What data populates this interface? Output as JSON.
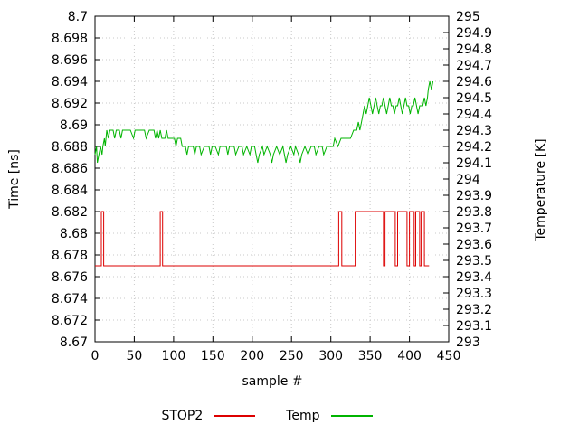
{
  "chart_data": {
    "type": "line",
    "title": "",
    "xlabel": "sample #",
    "ylabel_left": "Time [ns]",
    "ylabel_right": "Temperature [K]",
    "xlim": [
      0,
      450
    ],
    "ylim_left": [
      8.67,
      8.7
    ],
    "ylim_right": [
      293,
      295
    ],
    "grid": true,
    "legend_position": "bottom-center",
    "x_ticks": {
      "values": [
        0,
        50,
        100,
        150,
        200,
        250,
        300,
        350,
        400,
        450
      ],
      "labels": [
        "0",
        "50",
        "100",
        "150",
        "200",
        "250",
        "300",
        "350",
        "400",
        "450"
      ]
    },
    "left_ticks": {
      "values": [
        8.67,
        8.672,
        8.674,
        8.676,
        8.678,
        8.68,
        8.682,
        8.684,
        8.686,
        8.688,
        8.69,
        8.692,
        8.694,
        8.696,
        8.698,
        8.7
      ],
      "labels": [
        "8.67",
        "8.672",
        "8.674",
        "8.676",
        "8.678",
        "8.68",
        "8.682",
        "8.684",
        "8.686",
        "8.688",
        "8.69",
        "8.692",
        "8.694",
        "8.696",
        "8.698",
        "8.7"
      ]
    },
    "right_ticks": {
      "values": [
        293,
        293.1,
        293.2,
        293.3,
        293.4,
        293.5,
        293.6,
        293.7,
        293.8,
        293.9,
        294,
        294.1,
        294.2,
        294.3,
        294.4,
        294.5,
        294.6,
        294.7,
        294.8,
        294.9,
        295
      ],
      "labels": [
        "293",
        "293.1",
        "293.2",
        "293.3",
        "293.4",
        "293.5",
        "293.6",
        "293.7",
        "293.8",
        "293.9",
        "294",
        "294.1",
        "294.2",
        "294.3",
        "294.4",
        "294.5",
        "294.6",
        "294.7",
        "294.8",
        "294.9",
        "295"
      ]
    },
    "grid_color": "#c8c8c8",
    "border_color": "#000000",
    "series": [
      {
        "name": "STOP2",
        "axis": "left",
        "color": "#dd0000",
        "points": [
          [
            0,
            8.677
          ],
          [
            8,
            8.677
          ],
          [
            8,
            8.682
          ],
          [
            11,
            8.682
          ],
          [
            11,
            8.677
          ],
          [
            83,
            8.677
          ],
          [
            83,
            8.682
          ],
          [
            86,
            8.682
          ],
          [
            86,
            8.677
          ],
          [
            310,
            8.677
          ],
          [
            310,
            8.682
          ],
          [
            314,
            8.682
          ],
          [
            314,
            8.677
          ],
          [
            331,
            8.677
          ],
          [
            331,
            8.682
          ],
          [
            367,
            8.682
          ],
          [
            367,
            8.677
          ],
          [
            369,
            8.677
          ],
          [
            369,
            8.682
          ],
          [
            382,
            8.682
          ],
          [
            382,
            8.677
          ],
          [
            385,
            8.677
          ],
          [
            385,
            8.682
          ],
          [
            397,
            8.682
          ],
          [
            397,
            8.677
          ],
          [
            400,
            8.677
          ],
          [
            400,
            8.682
          ],
          [
            406,
            8.682
          ],
          [
            406,
            8.677
          ],
          [
            408,
            8.677
          ],
          [
            408,
            8.682
          ],
          [
            413,
            8.682
          ],
          [
            413,
            8.677
          ],
          [
            415,
            8.677
          ],
          [
            415,
            8.682
          ],
          [
            419,
            8.682
          ],
          [
            419,
            8.677
          ],
          [
            425,
            8.677
          ]
        ]
      },
      {
        "name": "Temp",
        "axis": "right",
        "color": "#00b400",
        "points": [
          [
            0,
            294.15
          ],
          [
            2,
            294.2
          ],
          [
            3,
            294.1
          ],
          [
            5,
            294.15
          ],
          [
            7,
            294.2
          ],
          [
            9,
            294.15
          ],
          [
            10,
            294.2
          ],
          [
            12,
            294.25
          ],
          [
            13,
            294.2
          ],
          [
            15,
            294.3
          ],
          [
            17,
            294.25
          ],
          [
            19,
            294.3
          ],
          [
            23,
            294.3
          ],
          [
            25,
            294.25
          ],
          [
            27,
            294.3
          ],
          [
            31,
            294.3
          ],
          [
            33,
            294.25
          ],
          [
            35,
            294.3
          ],
          [
            41,
            294.3
          ],
          [
            45,
            294.3
          ],
          [
            49,
            294.25
          ],
          [
            51,
            294.3
          ],
          [
            57,
            294.3
          ],
          [
            63,
            294.3
          ],
          [
            65,
            294.25
          ],
          [
            69,
            294.3
          ],
          [
            75,
            294.3
          ],
          [
            77,
            294.25
          ],
          [
            79,
            294.3
          ],
          [
            81,
            294.25
          ],
          [
            83,
            294.3
          ],
          [
            85,
            294.25
          ],
          [
            89,
            294.25
          ],
          [
            91,
            294.3
          ],
          [
            93,
            294.25
          ],
          [
            97,
            294.25
          ],
          [
            101,
            294.25
          ],
          [
            103,
            294.2
          ],
          [
            105,
            294.25
          ],
          [
            109,
            294.25
          ],
          [
            111,
            294.2
          ],
          [
            115,
            294.2
          ],
          [
            117,
            294.15
          ],
          [
            119,
            294.2
          ],
          [
            125,
            294.2
          ],
          [
            127,
            294.15
          ],
          [
            129,
            294.2
          ],
          [
            133,
            294.2
          ],
          [
            135,
            294.15
          ],
          [
            139,
            294.2
          ],
          [
            145,
            294.2
          ],
          [
            147,
            294.15
          ],
          [
            149,
            294.2
          ],
          [
            153,
            294.2
          ],
          [
            157,
            294.15
          ],
          [
            159,
            294.2
          ],
          [
            163,
            294.2
          ],
          [
            167,
            294.2
          ],
          [
            169,
            294.15
          ],
          [
            171,
            294.2
          ],
          [
            177,
            294.2
          ],
          [
            179,
            294.15
          ],
          [
            183,
            294.2
          ],
          [
            187,
            294.2
          ],
          [
            189,
            294.15
          ],
          [
            193,
            294.2
          ],
          [
            197,
            294.15
          ],
          [
            199,
            294.2
          ],
          [
            203,
            294.2
          ],
          [
            205,
            294.15
          ],
          [
            207,
            294.1
          ],
          [
            209,
            294.15
          ],
          [
            213,
            294.2
          ],
          [
            215,
            294.15
          ],
          [
            219,
            294.2
          ],
          [
            223,
            294.15
          ],
          [
            225,
            294.1
          ],
          [
            227,
            294.15
          ],
          [
            231,
            294.2
          ],
          [
            235,
            294.15
          ],
          [
            239,
            294.2
          ],
          [
            241,
            294.15
          ],
          [
            243,
            294.1
          ],
          [
            245,
            294.15
          ],
          [
            249,
            294.2
          ],
          [
            253,
            294.15
          ],
          [
            255,
            294.2
          ],
          [
            259,
            294.15
          ],
          [
            261,
            294.1
          ],
          [
            263,
            294.15
          ],
          [
            267,
            294.2
          ],
          [
            271,
            294.15
          ],
          [
            275,
            294.2
          ],
          [
            279,
            294.2
          ],
          [
            281,
            294.15
          ],
          [
            285,
            294.2
          ],
          [
            289,
            294.2
          ],
          [
            291,
            294.15
          ],
          [
            295,
            294.2
          ],
          [
            299,
            294.2
          ],
          [
            303,
            294.2
          ],
          [
            305,
            294.25
          ],
          [
            309,
            294.2
          ],
          [
            313,
            294.25
          ],
          [
            317,
            294.25
          ],
          [
            321,
            294.25
          ],
          [
            325,
            294.25
          ],
          [
            329,
            294.3
          ],
          [
            333,
            294.3
          ],
          [
            335,
            294.35
          ],
          [
            337,
            294.3
          ],
          [
            339,
            294.35
          ],
          [
            341,
            294.4
          ],
          [
            343,
            294.45
          ],
          [
            345,
            294.4
          ],
          [
            347,
            294.45
          ],
          [
            349,
            294.5
          ],
          [
            351,
            294.45
          ],
          [
            353,
            294.4
          ],
          [
            355,
            294.45
          ],
          [
            357,
            294.5
          ],
          [
            359,
            294.45
          ],
          [
            361,
            294.4
          ],
          [
            363,
            294.45
          ],
          [
            365,
            294.45
          ],
          [
            367,
            294.5
          ],
          [
            369,
            294.45
          ],
          [
            371,
            294.4
          ],
          [
            373,
            294.45
          ],
          [
            375,
            294.5
          ],
          [
            377,
            294.45
          ],
          [
            379,
            294.45
          ],
          [
            381,
            294.4
          ],
          [
            383,
            294.45
          ],
          [
            385,
            294.45
          ],
          [
            387,
            294.5
          ],
          [
            389,
            294.45
          ],
          [
            391,
            294.4
          ],
          [
            393,
            294.45
          ],
          [
            395,
            294.5
          ],
          [
            397,
            294.45
          ],
          [
            399,
            294.45
          ],
          [
            401,
            294.4
          ],
          [
            403,
            294.45
          ],
          [
            405,
            294.45
          ],
          [
            407,
            294.5
          ],
          [
            409,
            294.45
          ],
          [
            411,
            294.4
          ],
          [
            413,
            294.45
          ],
          [
            415,
            294.45
          ],
          [
            417,
            294.45
          ],
          [
            419,
            294.5
          ],
          [
            421,
            294.45
          ],
          [
            423,
            294.5
          ],
          [
            424,
            294.55
          ],
          [
            426,
            294.6
          ],
          [
            428,
            294.55
          ],
          [
            430,
            294.6
          ]
        ]
      }
    ]
  }
}
